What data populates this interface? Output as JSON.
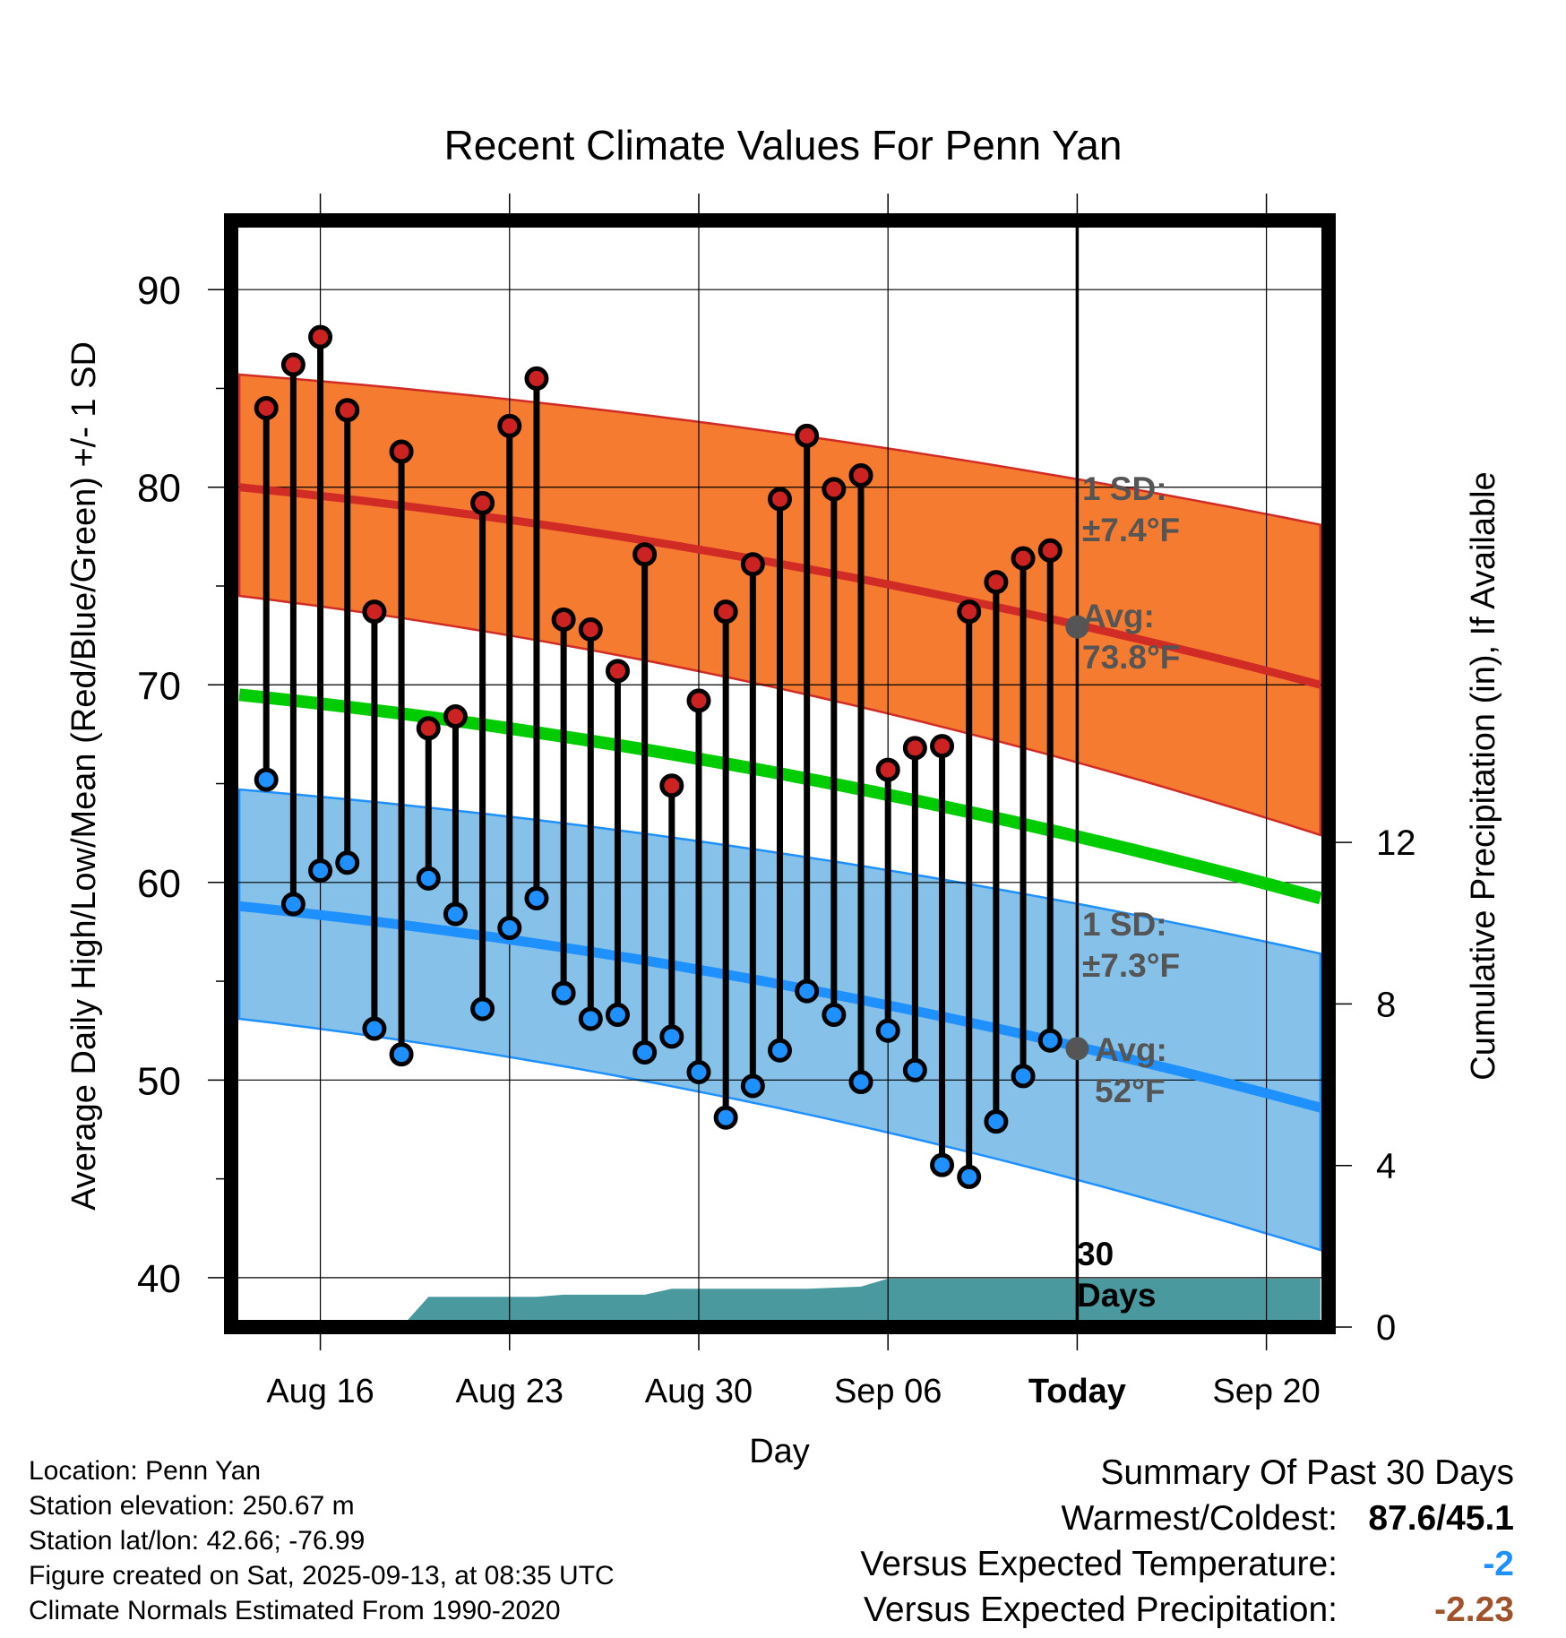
{
  "chart_data": {
    "type": "line",
    "title": "Recent Climate Values For Penn Yan",
    "xlabel": "Day",
    "ylabel": "Average Daily High/Low/Mean (Red/Blue/Green) +/- 1 SD",
    "y2label": "Cumulative Precipitation (in), If Available",
    "ylim": [
      37.5,
      93.5
    ],
    "y2lim": [
      0,
      27.4
    ],
    "yticks": [
      40,
      50,
      60,
      70,
      80,
      90
    ],
    "y2ticks": [
      0,
      4,
      8,
      12
    ],
    "xlim": [
      -3.3,
      37.3
    ],
    "xticks": [
      {
        "label": "Aug 16",
        "x": 0
      },
      {
        "label": "Aug 23",
        "x": 7
      },
      {
        "label": "Aug 30",
        "x": 14
      },
      {
        "label": "Sep 06",
        "x": 21
      },
      {
        "label": "Today",
        "x": 28
      },
      {
        "label": "Sep 20",
        "x": 35
      }
    ],
    "today_x": 28,
    "obs_x": [
      -2,
      -1,
      0,
      1,
      2,
      3,
      4,
      5,
      6,
      7,
      8,
      9,
      10,
      11,
      12,
      13,
      14,
      15,
      16,
      17,
      18,
      19,
      20,
      21,
      22,
      23,
      24,
      25,
      26,
      27
    ],
    "highs": [
      84.0,
      86.2,
      87.6,
      83.9,
      73.7,
      81.8,
      67.8,
      68.4,
      79.2,
      83.1,
      85.5,
      73.3,
      72.8,
      70.7,
      76.6,
      64.9,
      69.2,
      73.7,
      76.1,
      79.4,
      82.6,
      79.9,
      80.6,
      65.7,
      66.8,
      66.9,
      73.7,
      75.2,
      76.4,
      76.8
    ],
    "lows": [
      65.2,
      58.9,
      60.6,
      61.0,
      52.6,
      51.3,
      60.2,
      58.4,
      53.6,
      57.7,
      59.2,
      54.4,
      53.1,
      53.3,
      51.4,
      52.2,
      50.4,
      48.1,
      49.7,
      51.5,
      54.5,
      53.3,
      49.9,
      52.5,
      50.5,
      45.7,
      45.1,
      47.9,
      50.2,
      52.0
    ],
    "normal_curve_x": [
      -3,
      37
    ],
    "normal_high_avg": [
      80.0,
      70.0
    ],
    "normal_high_sd_upper": [
      85.7,
      78.1
    ],
    "normal_high_sd_lower": [
      74.5,
      62.4
    ],
    "normal_mean": [
      69.5,
      59.2
    ],
    "normal_low_avg": [
      58.8,
      48.6
    ],
    "normal_low_sd_upper": [
      64.7,
      56.4
    ],
    "normal_low_sd_lower": [
      53.1,
      41.4
    ],
    "precip_x": [
      -3,
      3,
      4,
      5,
      8,
      9,
      10,
      12,
      13,
      14,
      16,
      18,
      20,
      21,
      22,
      28,
      37
    ],
    "precip_cum": [
      0,
      0,
      0.75,
      0.75,
      0.75,
      0.8,
      0.8,
      0.8,
      0.95,
      0.95,
      0.95,
      0.95,
      1.0,
      1.2,
      1.2,
      1.2,
      1.2
    ],
    "annotations": {
      "high_sd": [
        "1 SD:",
        "±7.4°F"
      ],
      "high_avg": [
        "Avg:",
        "73.8°F"
      ],
      "low_sd": [
        "1 SD:",
        "±7.3°F"
      ],
      "low_avg": [
        "Avg:",
        "52°F"
      ],
      "days": [
        "30",
        "Days"
      ]
    },
    "colors": {
      "high_band": "#f47b30",
      "high_line": "#d12b26",
      "mean_line": "#00cc00",
      "low_band": "#85c1e9",
      "low_line": "#1e90ff",
      "precip": "#4a999f",
      "high_dot": "#cc2222",
      "low_dot": "#1e90ff",
      "annotation": "#555555"
    }
  },
  "footer": {
    "location": "Location: Penn Yan",
    "elevation": "Station elevation: 250.67 m",
    "latlon": "Station lat/lon: 42.66; -76.99",
    "created": "Figure created on Sat, 2025-09-13, at 08:35 UTC",
    "normals": "Climate Normals Estimated From 1990-2020"
  },
  "summary": {
    "title": "Summary Of Past 30 Days",
    "warmest_label": "Warmest/Coldest:",
    "warmest_value": "87.6/45.1",
    "temp_label": "Versus Expected Temperature:",
    "temp_value": "-2",
    "temp_color": "#1e90ff",
    "precip_label": "Versus Expected Precipitation:",
    "precip_value": "-2.23",
    "precip_color": "#a0522d"
  }
}
